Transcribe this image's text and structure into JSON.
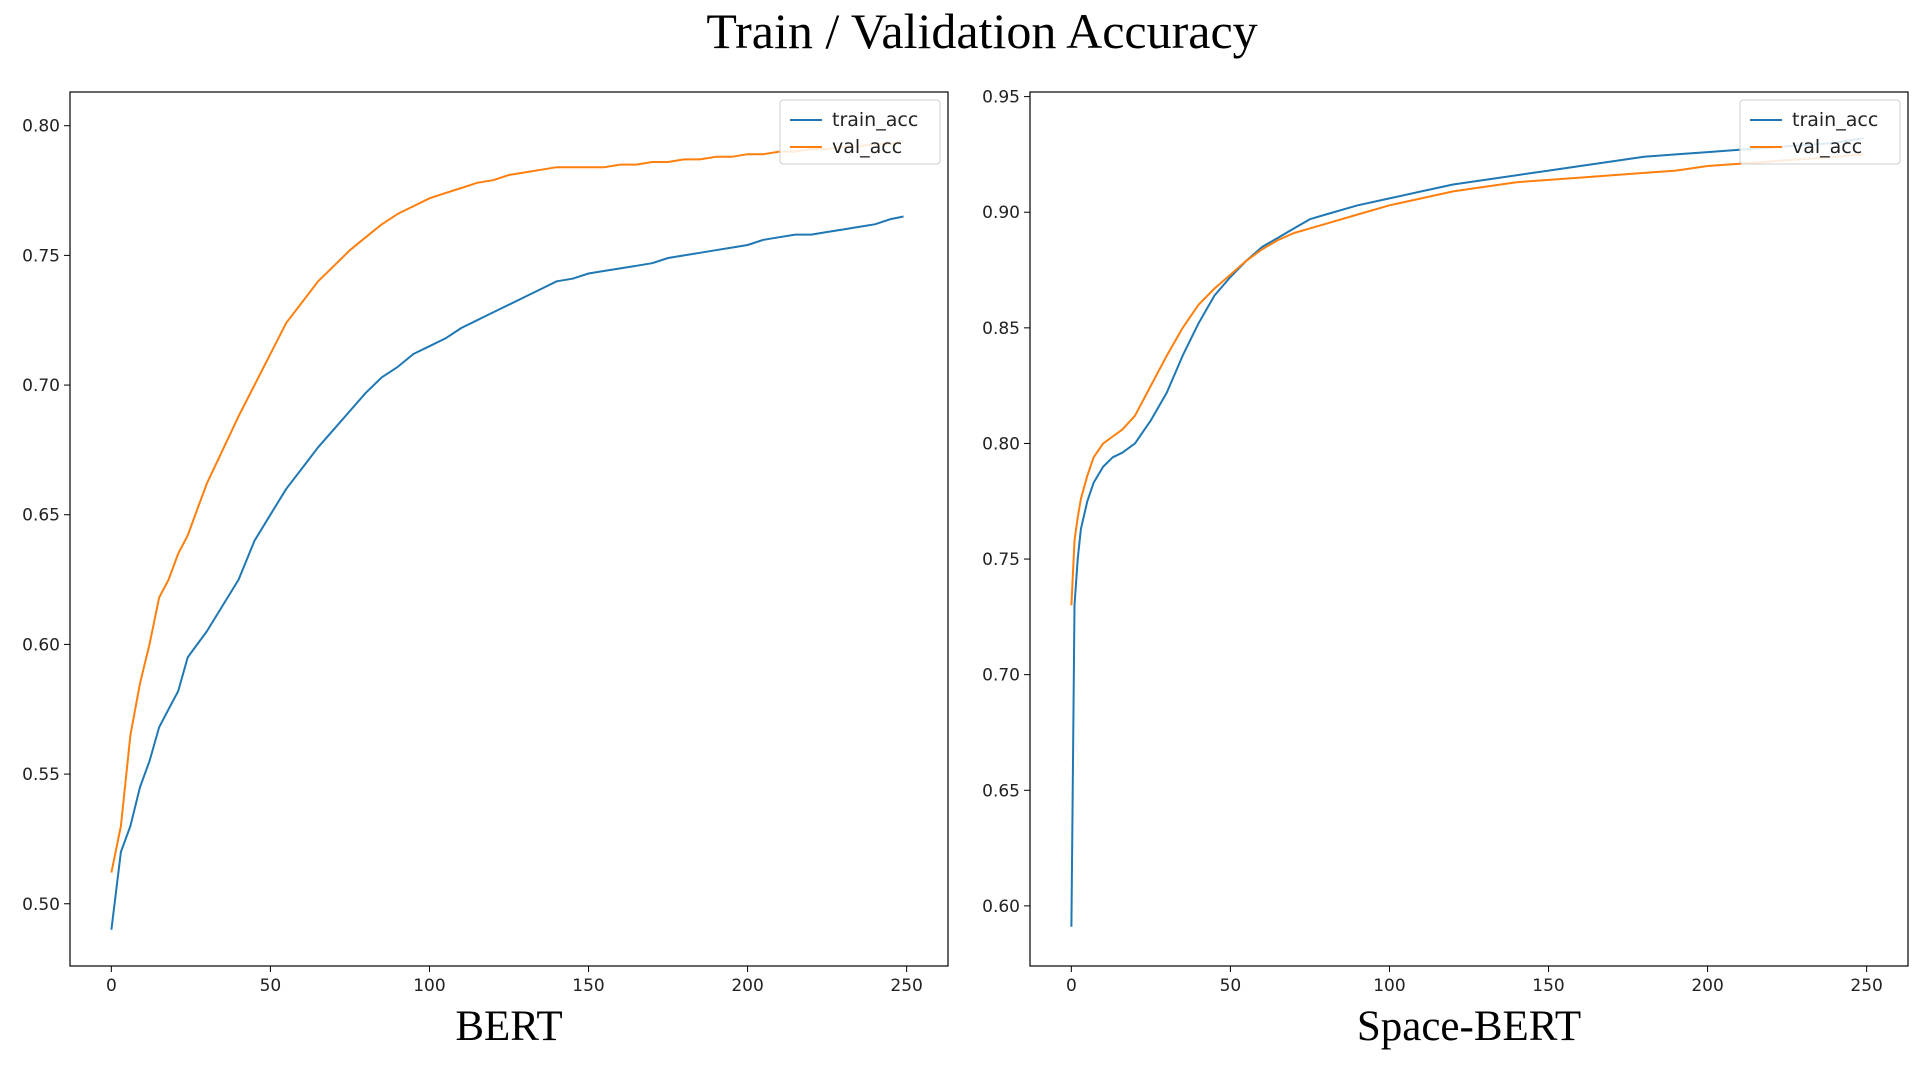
{
  "figure": {
    "title": "Train / Validation Accuracy"
  },
  "colors": {
    "train_acc": "#1f77b4",
    "val_acc": "#ff7f0e"
  },
  "chart_data": [
    {
      "type": "line",
      "caption": "BERT",
      "xlim": [
        -13,
        263
      ],
      "ylim": [
        0.476,
        0.813
      ],
      "xticks": [
        0,
        50,
        100,
        150,
        200,
        250
      ],
      "yticks": [
        0.5,
        0.55,
        0.6,
        0.65,
        0.7,
        0.75,
        0.8
      ],
      "legend": "top-right",
      "grid": false,
      "series": [
        {
          "name": "train_acc",
          "color": "#1f77b4",
          "x": [
            0,
            3,
            6,
            9,
            12,
            15,
            18,
            21,
            24,
            27,
            30,
            35,
            40,
            45,
            50,
            55,
            60,
            65,
            70,
            75,
            80,
            85,
            90,
            95,
            100,
            105,
            110,
            115,
            120,
            125,
            130,
            135,
            140,
            145,
            150,
            155,
            160,
            165,
            170,
            175,
            180,
            185,
            190,
            195,
            200,
            205,
            210,
            215,
            220,
            225,
            230,
            235,
            240,
            245,
            249
          ],
          "y": [
            0.49,
            0.52,
            0.53,
            0.545,
            0.555,
            0.568,
            0.575,
            0.582,
            0.595,
            0.6,
            0.605,
            0.615,
            0.625,
            0.64,
            0.65,
            0.66,
            0.668,
            0.676,
            0.683,
            0.69,
            0.697,
            0.703,
            0.707,
            0.712,
            0.715,
            0.718,
            0.722,
            0.725,
            0.728,
            0.731,
            0.734,
            0.737,
            0.74,
            0.741,
            0.743,
            0.744,
            0.745,
            0.746,
            0.747,
            0.749,
            0.75,
            0.751,
            0.752,
            0.753,
            0.754,
            0.756,
            0.757,
            0.758,
            0.758,
            0.759,
            0.76,
            0.761,
            0.762,
            0.764,
            0.765
          ]
        },
        {
          "name": "val_acc",
          "color": "#ff7f0e",
          "x": [
            0,
            3,
            6,
            9,
            12,
            15,
            18,
            21,
            24,
            27,
            30,
            35,
            40,
            45,
            50,
            55,
            60,
            65,
            70,
            75,
            80,
            85,
            90,
            95,
            100,
            105,
            110,
            115,
            120,
            125,
            130,
            135,
            140,
            145,
            150,
            155,
            160,
            165,
            170,
            175,
            180,
            185,
            190,
            195,
            200,
            205,
            210,
            215,
            220,
            225,
            230,
            235,
            240,
            245,
            249
          ],
          "y": [
            0.512,
            0.53,
            0.565,
            0.585,
            0.6,
            0.618,
            0.625,
            0.635,
            0.642,
            0.652,
            0.662,
            0.675,
            0.688,
            0.7,
            0.712,
            0.724,
            0.732,
            0.74,
            0.746,
            0.752,
            0.757,
            0.762,
            0.766,
            0.769,
            0.772,
            0.774,
            0.776,
            0.778,
            0.779,
            0.781,
            0.782,
            0.783,
            0.784,
            0.784,
            0.784,
            0.784,
            0.785,
            0.785,
            0.786,
            0.786,
            0.787,
            0.787,
            0.788,
            0.788,
            0.789,
            0.789,
            0.79,
            0.79,
            0.791,
            0.791,
            0.792,
            0.792,
            0.793,
            0.793,
            0.794
          ]
        }
      ]
    },
    {
      "type": "line",
      "caption": "Space-BERT",
      "xlim": [
        -13,
        263
      ],
      "ylim": [
        0.574,
        0.952
      ],
      "xticks": [
        0,
        50,
        100,
        150,
        200,
        250
      ],
      "yticks": [
        0.6,
        0.65,
        0.7,
        0.75,
        0.8,
        0.85,
        0.9,
        0.95
      ],
      "legend": "top-right",
      "grid": false,
      "series": [
        {
          "name": "train_acc",
          "color": "#1f77b4",
          "x": [
            0,
            1,
            2,
            3,
            5,
            7,
            10,
            13,
            16,
            20,
            25,
            30,
            35,
            40,
            45,
            50,
            55,
            60,
            65,
            70,
            75,
            80,
            90,
            100,
            110,
            120,
            130,
            140,
            150,
            160,
            170,
            180,
            190,
            200,
            210,
            220,
            230,
            240,
            249
          ],
          "y": [
            0.591,
            0.73,
            0.75,
            0.763,
            0.775,
            0.783,
            0.79,
            0.794,
            0.796,
            0.8,
            0.81,
            0.822,
            0.838,
            0.852,
            0.864,
            0.872,
            0.879,
            0.885,
            0.889,
            0.893,
            0.897,
            0.899,
            0.903,
            0.906,
            0.909,
            0.912,
            0.914,
            0.916,
            0.918,
            0.92,
            0.922,
            0.924,
            0.925,
            0.926,
            0.927,
            0.928,
            0.929,
            0.93,
            0.932
          ]
        },
        {
          "name": "val_acc",
          "color": "#ff7f0e",
          "x": [
            0,
            1,
            2,
            3,
            5,
            7,
            10,
            13,
            16,
            20,
            25,
            30,
            35,
            40,
            45,
            50,
            55,
            60,
            65,
            70,
            75,
            80,
            90,
            100,
            110,
            120,
            130,
            140,
            150,
            160,
            170,
            180,
            190,
            200,
            210,
            220,
            230,
            240,
            249
          ],
          "y": [
            0.73,
            0.758,
            0.768,
            0.776,
            0.786,
            0.794,
            0.8,
            0.803,
            0.806,
            0.812,
            0.825,
            0.838,
            0.85,
            0.86,
            0.867,
            0.873,
            0.879,
            0.884,
            0.888,
            0.891,
            0.893,
            0.895,
            0.899,
            0.903,
            0.906,
            0.909,
            0.911,
            0.913,
            0.914,
            0.915,
            0.916,
            0.917,
            0.918,
            0.92,
            0.921,
            0.922,
            0.923,
            0.924,
            0.925
          ]
        }
      ]
    }
  ]
}
